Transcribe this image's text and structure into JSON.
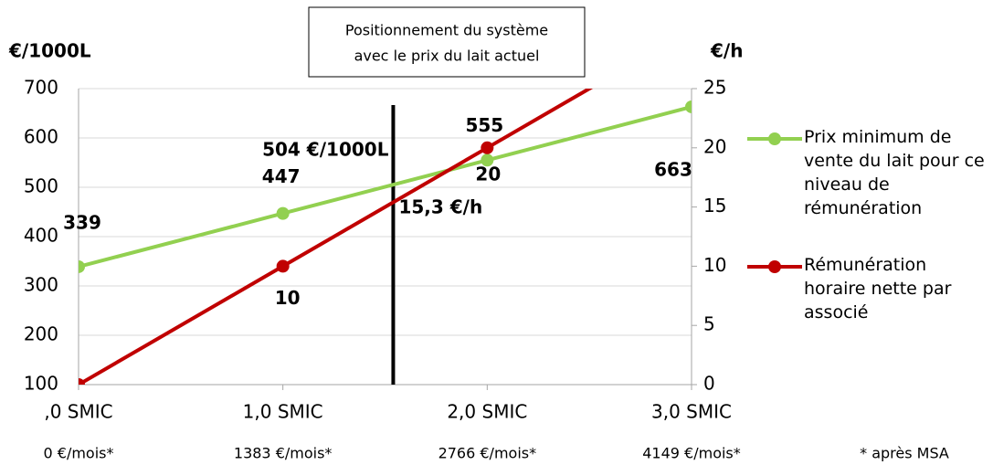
{
  "chart_data": {
    "type": "line",
    "y_axis_title": "€/1000L",
    "y2_axis_title": "€/h",
    "box_text": [
      "Positionnement du système",
      "avec le prix du lait actuel"
    ],
    "x": [
      0,
      1,
      2,
      3
    ],
    "xlim": [
      0,
      3
    ],
    "xticks": [
      {
        "value": 0,
        "label": ",0 SMIC"
      },
      {
        "value": 1,
        "label": "1,0 SMIC"
      },
      {
        "value": 2,
        "label": "2,0 SMIC"
      },
      {
        "value": 3,
        "label": "3,0 SMIC"
      }
    ],
    "x_sublabels": [
      "0 €/mois*",
      "1383 €/mois*",
      "2766 €/mois*",
      "4149 €/mois*"
    ],
    "footnote": "* après MSA",
    "ylim": [
      100,
      700
    ],
    "yticks": [
      100,
      200,
      300,
      400,
      500,
      600,
      700
    ],
    "y2lim": [
      0,
      25
    ],
    "y2ticks": [
      0,
      5,
      10,
      15,
      20,
      25
    ],
    "grid": true,
    "series": [
      {
        "name": "Prix minimum de vente du lait pour ce niveau de rémunération",
        "color": "#92d050",
        "values": [
          339,
          447,
          555,
          663
        ],
        "value_labels": [
          "339",
          "447",
          "555",
          "663"
        ]
      },
      {
        "name": "Rémunération horaire nette par associé",
        "color": "#c00000",
        "axis": "y2",
        "values": [
          0,
          10,
          20,
          30
        ],
        "value_labels": [
          null,
          "10",
          "20",
          null
        ]
      }
    ],
    "marker_x": 1.54,
    "annotations": [
      "504 €/1000L",
      "15,3 €/h"
    ]
  }
}
